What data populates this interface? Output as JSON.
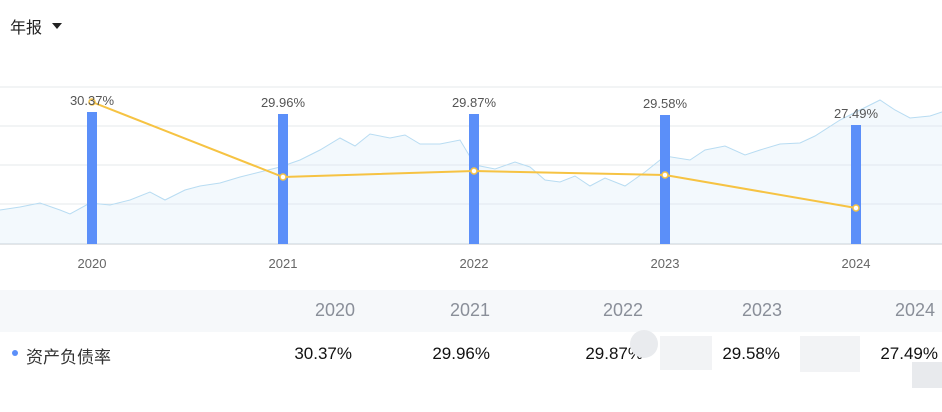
{
  "header": {
    "period_label": "年报",
    "period_icon": "caret-down-icon"
  },
  "chart_data": {
    "type": "bar",
    "categories": [
      "2020",
      "2021",
      "2022",
      "2023",
      "2024"
    ],
    "series": [
      {
        "name": "资产负债率",
        "values": [
          30.37,
          29.96,
          29.87,
          29.58,
          27.49
        ],
        "unit": "%"
      }
    ],
    "data_labels": [
      "30.37%",
      "29.96%",
      "29.87%",
      "29.58%",
      "27.49%"
    ],
    "title": "",
    "xlabel": "",
    "ylabel": "",
    "grid": true,
    "colors": {
      "bar": "#5b8ff9",
      "line": "#f6c343",
      "background_area": "#cfe7f7",
      "grid": "#e6e8eb"
    }
  },
  "table": {
    "years": [
      "2020",
      "2021",
      "2022",
      "2023",
      "2024"
    ],
    "row": {
      "label": "资产负债率",
      "values": [
        "30.37%",
        "29.96%",
        "29.87%",
        "29.58%",
        "27.49%"
      ],
      "bullet_color": "#5b8ff9"
    }
  }
}
